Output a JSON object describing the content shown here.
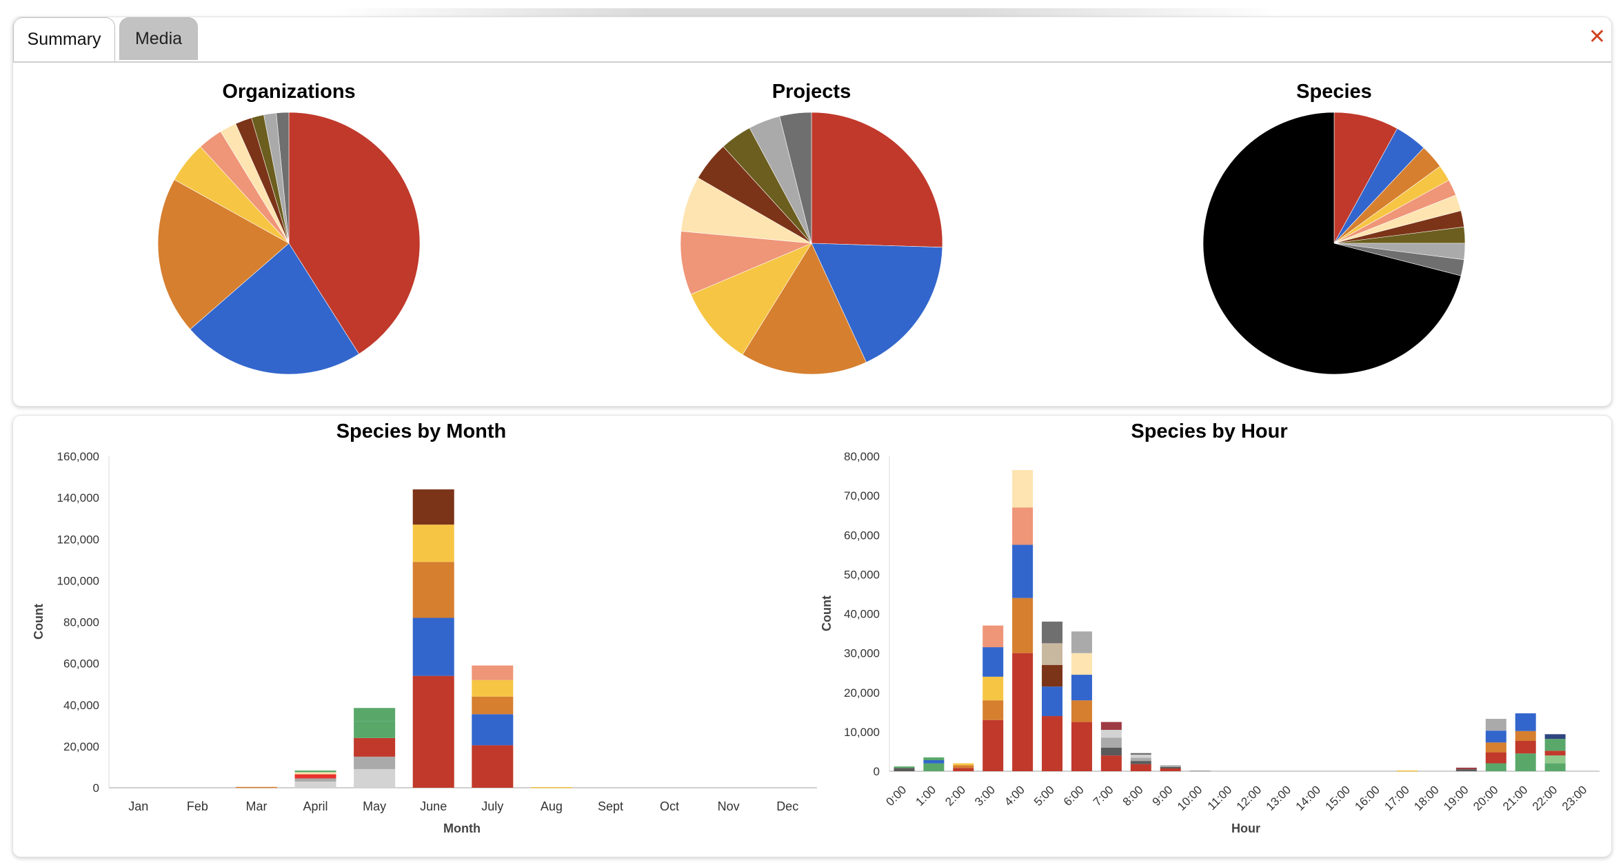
{
  "tabs": {
    "summary": "Summary",
    "media": "Media",
    "close_glyph": "✕"
  },
  "colors": {
    "palette": [
      "#c0392b",
      "#3366cc",
      "#d67f2f",
      "#f6c544",
      "#ef9578",
      "#fde4b0",
      "#7b3418",
      "#6b5e1e",
      "#aaaaaa",
      "#6f6f6f",
      "#000000",
      "#59a86a",
      "#d3d3d3",
      "#e8332d",
      "#8fc98a",
      "#2f4580",
      "#c9b8a0",
      "#9e3a44",
      "#5a5a5a"
    ]
  },
  "chart_data": [
    {
      "type": "pie",
      "title": "Organizations",
      "values": [
        40,
        22,
        19,
        5,
        3,
        2,
        2,
        1.5,
        1.5,
        1.5
      ],
      "color_index": [
        0,
        1,
        2,
        3,
        4,
        5,
        6,
        7,
        8,
        9
      ]
    },
    {
      "type": "pie",
      "title": "Projects",
      "values": [
        26,
        18,
        16,
        10,
        8,
        7,
        5,
        4,
        4,
        4
      ],
      "color_index": [
        0,
        1,
        2,
        3,
        4,
        5,
        6,
        7,
        8,
        9
      ]
    },
    {
      "type": "pie",
      "title": "Species",
      "values": [
        8,
        4,
        3,
        2,
        2,
        2,
        2,
        2,
        2,
        2,
        71
      ],
      "color_index": [
        0,
        1,
        2,
        3,
        4,
        5,
        6,
        7,
        8,
        9,
        10
      ]
    },
    {
      "type": "bar",
      "stacked": true,
      "title": "Species by Month",
      "xlabel": "Month",
      "ylabel": "Count",
      "ylim": [
        0,
        160000
      ],
      "yticks": [
        0,
        20000,
        40000,
        60000,
        80000,
        100000,
        120000,
        140000,
        160000
      ],
      "ytick_labels": [
        "0",
        "20,000",
        "40,000",
        "60,000",
        "80,000",
        "100,000",
        "120,000",
        "140,000",
        "160,000"
      ],
      "categories": [
        "Jan",
        "Feb",
        "Mar",
        "April",
        "May",
        "June",
        "July",
        "Aug",
        "Sept",
        "Oct",
        "Nov",
        "Dec"
      ],
      "stacks": [
        [],
        [],
        [
          [
            2,
            400
          ]
        ],
        [
          [
            12,
            3000
          ],
          [
            8,
            1500
          ],
          [
            13,
            2000
          ],
          [
            5,
            1000
          ],
          [
            11,
            800
          ]
        ],
        [
          [
            12,
            9000
          ],
          [
            8,
            6000
          ],
          [
            0,
            9000
          ],
          [
            11,
            8000
          ],
          [
            11,
            6500
          ]
        ],
        [
          [
            0,
            54000
          ],
          [
            1,
            28000
          ],
          [
            2,
            27000
          ],
          [
            3,
            18000
          ],
          [
            6,
            17000
          ]
        ],
        [
          [
            0,
            20500
          ],
          [
            1,
            15000
          ],
          [
            2,
            8500
          ],
          [
            3,
            8000
          ],
          [
            4,
            7000
          ]
        ],
        [
          [
            3,
            300
          ]
        ],
        [],
        [],
        [],
        []
      ]
    },
    {
      "type": "bar",
      "stacked": true,
      "title": "Species by Hour",
      "xlabel": "Hour",
      "ylabel": "Count",
      "ylim": [
        0,
        80000
      ],
      "yticks": [
        0,
        10000,
        20000,
        30000,
        40000,
        50000,
        60000,
        70000,
        80000
      ],
      "ytick_labels": [
        "0",
        "10,000",
        "20,000",
        "30,000",
        "40,000",
        "50,000",
        "60,000",
        "70,000",
        "80,000"
      ],
      "categories": [
        "0:00",
        "1:00",
        "2:00",
        "3:00",
        "4:00",
        "5:00",
        "6:00",
        "7:00",
        "8:00",
        "9:00",
        "10:00",
        "11:00",
        "12:00",
        "13:00",
        "14:00",
        "15:00",
        "16:00",
        "17:00",
        "18:00",
        "19:00",
        "20:00",
        "21:00",
        "22:00",
        "23:00"
      ],
      "stacks": [
        [
          [
            18,
            800
          ],
          [
            11,
            400
          ]
        ],
        [
          [
            11,
            2000
          ],
          [
            1,
            800
          ],
          [
            11,
            700
          ]
        ],
        [
          [
            0,
            800
          ],
          [
            2,
            700
          ],
          [
            3,
            500
          ]
        ],
        [
          [
            0,
            13000
          ],
          [
            2,
            5000
          ],
          [
            3,
            6000
          ],
          [
            1,
            7500
          ],
          [
            4,
            5500
          ]
        ],
        [
          [
            0,
            30000
          ],
          [
            2,
            14000
          ],
          [
            1,
            13500
          ],
          [
            4,
            9500
          ],
          [
            5,
            9500
          ]
        ],
        [
          [
            0,
            14000
          ],
          [
            1,
            7500
          ],
          [
            6,
            5500
          ],
          [
            16,
            5500
          ],
          [
            9,
            5500
          ]
        ],
        [
          [
            0,
            12500
          ],
          [
            2,
            5500
          ],
          [
            1,
            6500
          ],
          [
            5,
            5500
          ],
          [
            8,
            5500
          ]
        ],
        [
          [
            0,
            4000
          ],
          [
            18,
            2000
          ],
          [
            8,
            2500
          ],
          [
            12,
            2000
          ],
          [
            17,
            2000
          ]
        ],
        [
          [
            0,
            1800
          ],
          [
            18,
            800
          ],
          [
            8,
            800
          ],
          [
            12,
            800
          ],
          [
            9,
            400
          ]
        ],
        [
          [
            0,
            700
          ],
          [
            18,
            400
          ],
          [
            8,
            400
          ]
        ],
        [
          [
            8,
            200
          ]
        ],
        [],
        [],
        [],
        [],
        [],
        [],
        [
          [
            3,
            200
          ]
        ],
        [],
        [
          [
            18,
            500
          ],
          [
            17,
            400
          ]
        ],
        [
          [
            11,
            2000
          ],
          [
            0,
            2800
          ],
          [
            2,
            2500
          ],
          [
            1,
            3000
          ],
          [
            8,
            3000
          ]
        ],
        [
          [
            11,
            4500
          ],
          [
            0,
            3200
          ],
          [
            2,
            2500
          ],
          [
            1,
            4500
          ]
        ],
        [
          [
            11,
            2000
          ],
          [
            14,
            2000
          ],
          [
            0,
            1200
          ],
          [
            11,
            3000
          ],
          [
            15,
            1200
          ]
        ],
        []
      ]
    }
  ]
}
